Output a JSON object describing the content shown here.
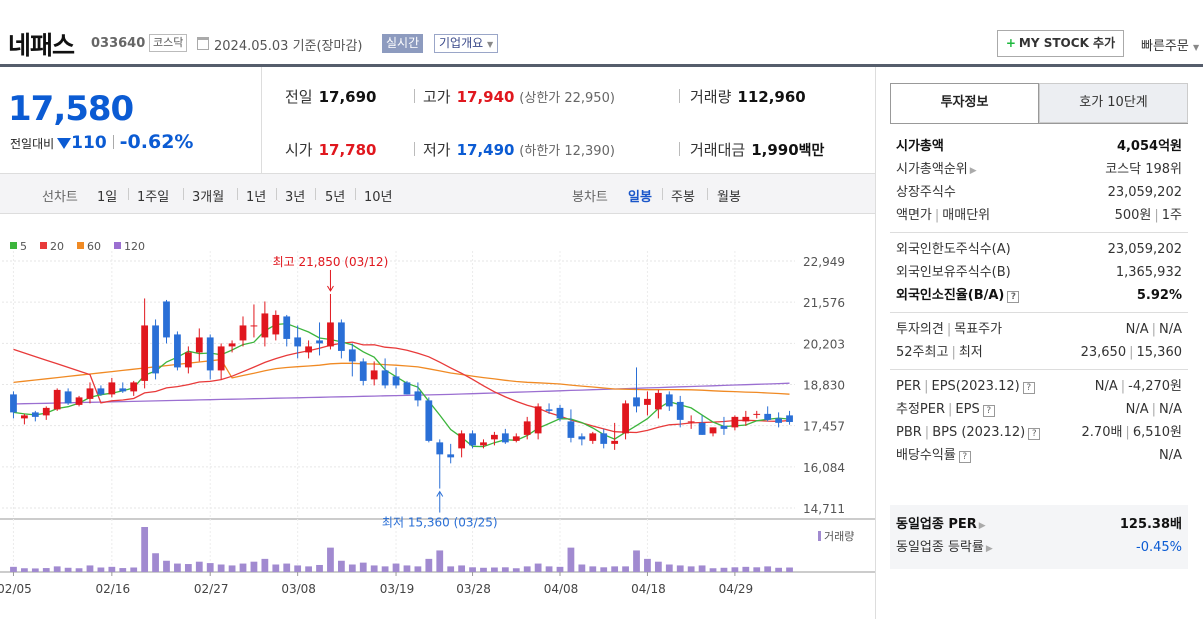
{
  "header": {
    "company_name": "네패스",
    "code": "033640",
    "market": "코스닥",
    "date": "2024.05.03 기준(장마감)",
    "realtime_label": "실시간",
    "overview_label": "기업개요",
    "mystock_label": "MY STOCK 추가",
    "quick_order_label": "빠른주문"
  },
  "price": {
    "current": "17,580",
    "change_label": "전일대비",
    "change_value": "110",
    "change_pct": "-0.62%",
    "prev_label": "전일",
    "prev": "17,690",
    "high_label": "고가",
    "high": "17,940",
    "upper_limit": "(상한가 22,950)",
    "volume_label": "거래량",
    "volume": "112,960",
    "open_label": "시가",
    "open": "17,780",
    "low_label": "저가",
    "low": "17,490",
    "lower_limit": "(하한가 12,390)",
    "amount_label": "거래대금",
    "amount": "1,990",
    "amount_unit": "백만"
  },
  "periods": {
    "line_label": "선차트",
    "line_items": [
      "1일",
      "1주일",
      "3개월",
      "1년",
      "3년",
      "5년",
      "10년"
    ],
    "candle_label": "봉차트",
    "candle_items": [
      "일봉",
      "주봉",
      "월봉"
    ],
    "selected": "일봉"
  },
  "chart_data": {
    "type": "candlestick",
    "legend": [
      {
        "name": "5",
        "color": "#3cb53c"
      },
      {
        "name": "20",
        "color": "#e83a3a"
      },
      {
        "name": "60",
        "color": "#f08a24"
      },
      {
        "name": "120",
        "color": "#9b6fd1"
      }
    ],
    "y_ticks": [
      "22,949",
      "21,576",
      "20,203",
      "18,830",
      "17,457",
      "16,084",
      "14,711"
    ],
    "ylim": [
      14711,
      22949
    ],
    "x_ticks": [
      "02/05",
      "02/16",
      "02/27",
      "03/08",
      "03/19",
      "03/28",
      "04/08",
      "04/18",
      "04/29"
    ],
    "high_annotation": "최고 21,850 (03/12)",
    "low_annotation": "최저 15,360 (03/25)",
    "volume_label": "거래량",
    "candles": [
      [
        18500,
        18600,
        17700,
        17900
      ],
      [
        17700,
        17850,
        17500,
        17800
      ],
      [
        17900,
        17950,
        17600,
        17750
      ],
      [
        17800,
        18100,
        17650,
        18050
      ],
      [
        18000,
        18700,
        17950,
        18650
      ],
      [
        18600,
        18700,
        18150,
        18200
      ],
      [
        18150,
        18450,
        18100,
        18400
      ],
      [
        18350,
        18900,
        18200,
        18700
      ],
      [
        18700,
        18800,
        18450,
        18500
      ],
      [
        18500,
        19050,
        18400,
        18900
      ],
      [
        18700,
        18900,
        18550,
        18600
      ],
      [
        18600,
        18950,
        18450,
        18900
      ],
      [
        18950,
        21700,
        18700,
        20800
      ],
      [
        20800,
        21000,
        19000,
        19200
      ],
      [
        21600,
        21650,
        20200,
        20400
      ],
      [
        20500,
        20600,
        19300,
        19400
      ],
      [
        19400,
        20100,
        19200,
        19900
      ],
      [
        19900,
        20700,
        19600,
        20400
      ],
      [
        20400,
        20500,
        19000,
        19300
      ],
      [
        19300,
        20200,
        19000,
        20100
      ],
      [
        20100,
        20300,
        19900,
        20200
      ],
      [
        20300,
        21100,
        20100,
        20800
      ],
      [
        20800,
        21500,
        20400,
        20800
      ],
      [
        20400,
        21600,
        20100,
        21200
      ],
      [
        20500,
        21300,
        20300,
        21150
      ],
      [
        21100,
        21150,
        20100,
        20350
      ],
      [
        20400,
        20800,
        19700,
        20100
      ],
      [
        19900,
        20300,
        19700,
        20100
      ],
      [
        20300,
        20900,
        19800,
        20200
      ],
      [
        20100,
        21850,
        20000,
        20900
      ],
      [
        20900,
        21000,
        19700,
        19950
      ],
      [
        20000,
        20200,
        19100,
        19600
      ],
      [
        19600,
        19700,
        18800,
        18950
      ],
      [
        19000,
        19600,
        18800,
        19300
      ],
      [
        19300,
        19700,
        18700,
        18800
      ],
      [
        19100,
        19400,
        18700,
        18800
      ],
      [
        18900,
        18950,
        18500,
        18500
      ],
      [
        18600,
        18900,
        18100,
        18300
      ],
      [
        18300,
        18400,
        16900,
        16950
      ],
      [
        16900,
        17000,
        15360,
        16500
      ],
      [
        16500,
        16850,
        16200,
        16400
      ],
      [
        16700,
        17300,
        16400,
        17200
      ],
      [
        17200,
        17300,
        16700,
        16800
      ],
      [
        16800,
        17000,
        16700,
        16900
      ],
      [
        17000,
        17250,
        16800,
        17150
      ],
      [
        17200,
        17350,
        16850,
        16900
      ],
      [
        16950,
        17200,
        16900,
        17100
      ],
      [
        17150,
        17750,
        17000,
        17600
      ],
      [
        17200,
        18200,
        17000,
        18100
      ],
      [
        18000,
        18200,
        17850,
        17950
      ],
      [
        18050,
        18150,
        17600,
        17700
      ],
      [
        17600,
        18000,
        16900,
        17050
      ],
      [
        17100,
        17200,
        16800,
        17000
      ],
      [
        16950,
        17250,
        16850,
        17200
      ],
      [
        17200,
        17350,
        16700,
        16850
      ],
      [
        16850,
        17550,
        16650,
        16950
      ],
      [
        17200,
        18300,
        17000,
        18200
      ],
      [
        18400,
        19400,
        17900,
        18100
      ],
      [
        18150,
        18600,
        17800,
        18350
      ],
      [
        18000,
        18650,
        17700,
        18550
      ],
      [
        18500,
        18600,
        17950,
        18100
      ],
      [
        18250,
        18450,
        17400,
        17650
      ],
      [
        17600,
        17800,
        17350,
        17600
      ],
      [
        17550,
        17800,
        17150,
        17150
      ],
      [
        17200,
        17400,
        17100,
        17400
      ],
      [
        17450,
        17750,
        17150,
        17350
      ],
      [
        17400,
        17800,
        17300,
        17750
      ],
      [
        17600,
        17950,
        17450,
        17750
      ],
      [
        17850,
        17950,
        17700,
        17850
      ],
      [
        17850,
        18100,
        17600,
        17650
      ],
      [
        17700,
        17900,
        17400,
        17550
      ],
      [
        17800,
        17950,
        17490,
        17580
      ]
    ],
    "volumes": [
      55,
      40,
      38,
      42,
      60,
      45,
      40,
      70,
      48,
      55,
      42,
      48,
      480,
      200,
      120,
      90,
      85,
      110,
      95,
      80,
      70,
      90,
      110,
      140,
      80,
      90,
      70,
      60,
      75,
      260,
      120,
      80,
      100,
      70,
      60,
      90,
      70,
      60,
      140,
      230,
      60,
      70,
      50,
      45,
      48,
      50,
      40,
      60,
      90,
      60,
      55,
      260,
      80,
      60,
      50,
      60,
      60,
      230,
      140,
      110,
      80,
      70,
      60,
      70,
      40,
      45,
      50,
      55,
      50,
      60,
      45,
      48
    ]
  },
  "right_panel": {
    "tab_active": "투자정보",
    "tab_inactive": "호가 10단계",
    "market_cap_label": "시가총액",
    "market_cap": "4,054억원",
    "rank_label": "시가총액순위",
    "rank": "코스닥 198위",
    "shares_label": "상장주식수",
    "shares": "23,059,202",
    "par_label": "액면가",
    "unit_label": "매매단위",
    "par": "500원",
    "unit": "1주",
    "foreign_limit_label": "외국인한도주식수(A)",
    "foreign_limit": "23,059,202",
    "foreign_hold_label": "외국인보유주식수(B)",
    "foreign_hold": "1,365,932",
    "foreign_ratio_label": "외국인소진율(B/A)",
    "foreign_ratio": "5.92%",
    "opinion_label": "투자의견",
    "target_label": "목표주가",
    "opinion": "N/A",
    "target": "N/A",
    "w52_high_label": "52주최고",
    "w52_low_label": "최저",
    "w52_high": "23,650",
    "w52_low": "15,360",
    "per_label": "PER",
    "eps_label": "EPS(2023.12)",
    "per": "N/A",
    "eps": "-4,270원",
    "est_per_label": "추정PER",
    "est_eps_label": "EPS",
    "est_per": "N/A",
    "est_eps": "N/A",
    "pbr_label": "PBR",
    "bps_label": "BPS (2023.12)",
    "pbr": "2.70배",
    "bps": "6,510원",
    "div_label": "배당수익률",
    "div": "N/A",
    "ind_per_label": "동일업종 PER",
    "ind_per": "125.38배",
    "ind_chg_label": "동일업종 등락률",
    "ind_chg": "-0.45%"
  }
}
